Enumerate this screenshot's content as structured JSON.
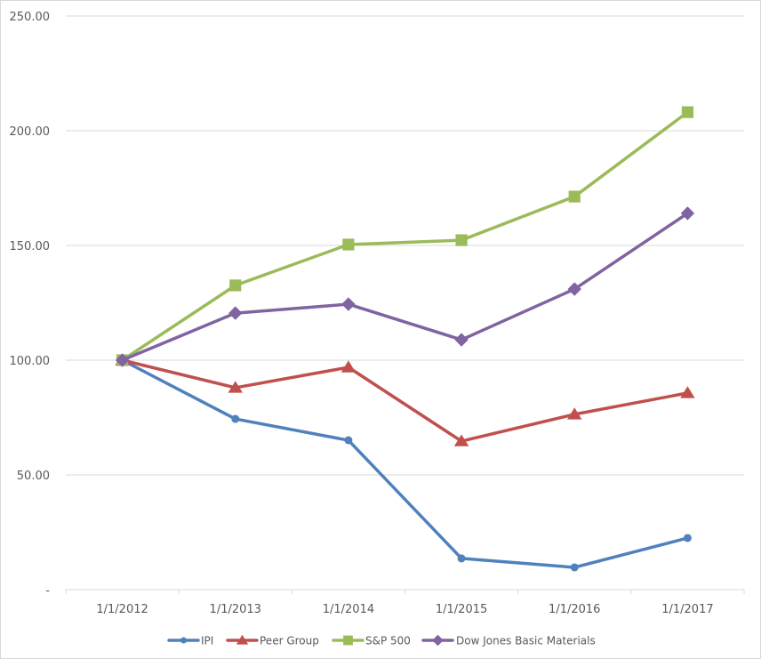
{
  "chart_data": {
    "type": "line",
    "title": "",
    "xlabel": "",
    "ylabel": "",
    "categories": [
      "1/1/2012",
      "1/1/2013",
      "1/1/2014",
      "1/1/2015",
      "1/1/2016",
      "1/1/2017"
    ],
    "series": [
      {
        "name": "IPI",
        "color": "#4F81BD",
        "marker": "circle",
        "values": [
          100.0,
          74.4,
          65.1,
          13.6,
          9.7,
          22.5
        ]
      },
      {
        "name": "Peer Group",
        "color": "#C0504D",
        "marker": "triangle",
        "values": [
          100.0,
          88.0,
          96.9,
          64.7,
          76.4,
          85.7
        ]
      },
      {
        "name": "S&P 500",
        "color": "#9BBB59",
        "marker": "square",
        "values": [
          100.0,
          132.6,
          150.4,
          152.3,
          171.3,
          208.1
        ]
      },
      {
        "name": "Dow Jones Basic Materials",
        "color": "#8064A2",
        "marker": "diamond",
        "values": [
          100.0,
          120.5,
          124.4,
          108.9,
          131.0,
          164.0
        ]
      }
    ],
    "ylim": [
      0,
      250
    ],
    "yticks": [
      0,
      50,
      100,
      150,
      200,
      250
    ],
    "ytick_labels": [
      "-",
      "50.00",
      "100.00",
      "150.00",
      "200.00",
      "250.00"
    ],
    "grid": true,
    "legend_position": "bottom"
  }
}
